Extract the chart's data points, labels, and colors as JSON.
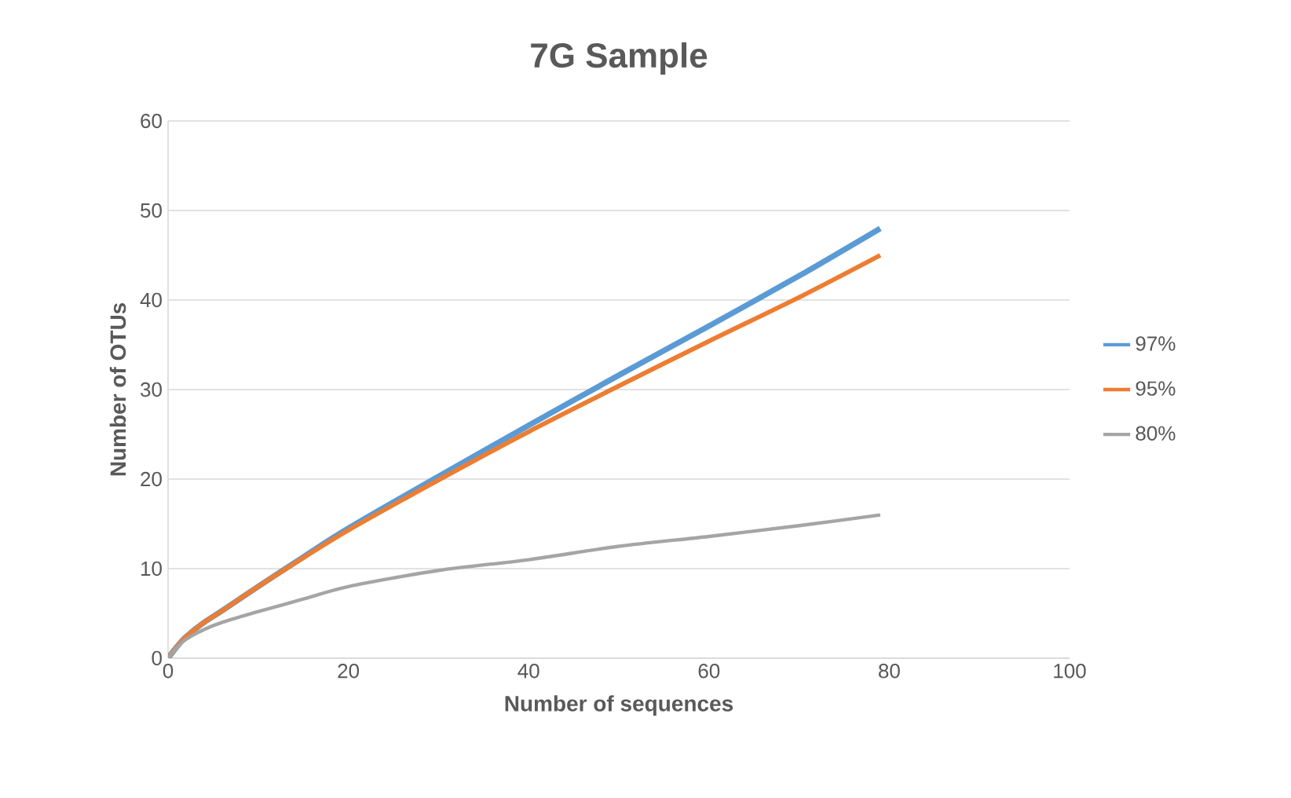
{
  "chart_data": {
    "type": "line",
    "title": "7G Sample",
    "xlabel": "Number of sequences",
    "ylabel": "Number of OTUs",
    "x": [
      0,
      1,
      2,
      4,
      6,
      10,
      15,
      20,
      30,
      40,
      50,
      60,
      70,
      79
    ],
    "series": [
      {
        "name": "97%",
        "color": "#5b9bd5",
        "values": [
          0,
          1.3,
          2.4,
          4,
          5.3,
          8,
          11.3,
          14.5,
          20.3,
          26,
          31.6,
          37.1,
          42.7,
          48
        ]
      },
      {
        "name": "95%",
        "color": "#ed7d31",
        "values": [
          0,
          1.3,
          2.4,
          4,
          5.3,
          8,
          11.2,
          14.3,
          19.9,
          25.3,
          30.4,
          35.4,
          40.3,
          45
        ]
      },
      {
        "name": "80%",
        "color": "#a5a5a5",
        "values": [
          0,
          1.2,
          2.1,
          3.2,
          4,
          5.2,
          6.6,
          8,
          9.8,
          11,
          12.5,
          13.6,
          14.8,
          16
        ]
      }
    ],
    "xlim": [
      0,
      100
    ],
    "xticks": [
      0,
      20,
      40,
      60,
      80,
      100
    ],
    "ylim": [
      0,
      60
    ],
    "yticks": [
      0,
      10,
      20,
      30,
      40,
      50,
      60
    ],
    "grid": "y",
    "legend": "right",
    "marker": "none",
    "line_style": "solid"
  }
}
